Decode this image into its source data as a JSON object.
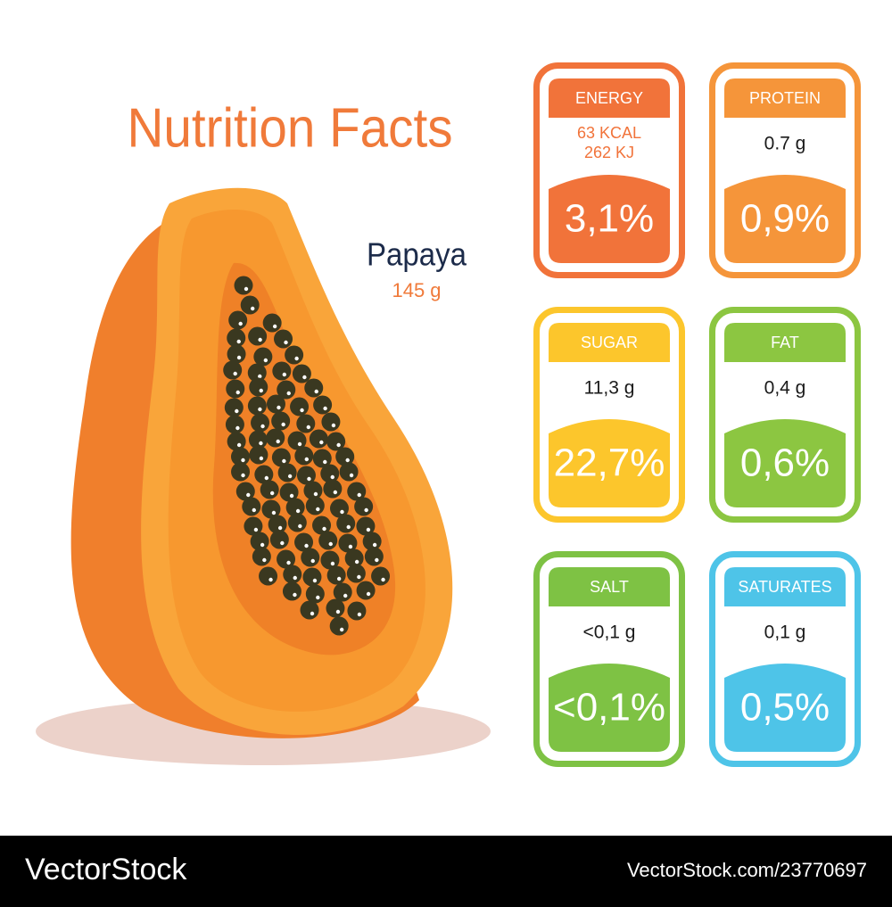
{
  "header": {
    "title": "Nutrition Facts"
  },
  "product": {
    "name": "Papaya",
    "weight": "145 g"
  },
  "cards": [
    {
      "label": "ENERGY",
      "amount": [
        "63 KCAL",
        "262 KJ"
      ],
      "percent": "3,1%",
      "color": "#f1733a"
    },
    {
      "label": "PROTEIN",
      "amount": [
        "0.7 g"
      ],
      "percent": "0,9%",
      "color": "#f5953a"
    },
    {
      "label": "SUGAR",
      "amount": [
        "11,3 g"
      ],
      "percent": "22,7%",
      "color": "#fcc62c"
    },
    {
      "label": "FAT",
      "amount": [
        "0,4 g"
      ],
      "percent": "0,6%",
      "color": "#8cc641"
    },
    {
      "label": "SALT",
      "amount": [
        "<0,1 g"
      ],
      "percent": "<0,1%",
      "color": "#7ec244"
    },
    {
      "label": "SATURATES",
      "amount": [
        "0,1 g"
      ],
      "percent": "0,5%",
      "color": "#4ec4e8"
    }
  ],
  "footer": {
    "brand": "VectorStock",
    "id": "VectorStock.com/23770697"
  }
}
